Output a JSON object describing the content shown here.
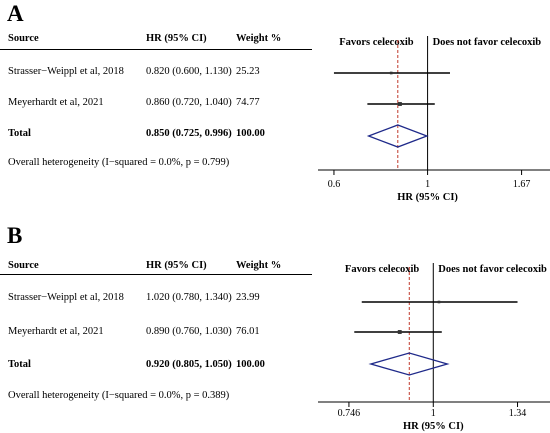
{
  "panels": [
    {
      "label": "A",
      "header": {
        "source": "Source",
        "hr": "HR (95% CI)",
        "weight": "Weight %"
      },
      "studies": [
        {
          "source": "Strasser−Weippl et al, 2018",
          "hr_text": "0.820 (0.600, 1.130)",
          "weight": "25.23"
        },
        {
          "source": "Meyerhardt et al, 2021",
          "hr_text": "0.860 (0.720, 1.040)",
          "weight": "74.77"
        }
      ],
      "total": {
        "label": "Total",
        "hr_text": "0.850 (0.725, 0.996)",
        "weight": "100.00"
      },
      "heterogeneity": "Overall heterogeneity (I−squared = 0.0%, p = 0.799)"
    },
    {
      "label": "B",
      "header": {
        "source": "Source",
        "hr": "HR (95% CI)",
        "weight": "Weight %"
      },
      "studies": [
        {
          "source": "Strasser−Weippl et al, 2018",
          "hr_text": "1.020 (0.780, 1.340)",
          "weight": "23.99"
        },
        {
          "source": "Meyerhardt et al, 2021",
          "hr_text": "0.890 (0.760, 1.030)",
          "weight": "76.01"
        }
      ],
      "total": {
        "label": "Total",
        "hr_text": "0.920 (0.805, 1.050)",
        "weight": "100.00"
      },
      "heterogeneity": "Overall heterogeneity (I−squared = 0.0%, p = 0.389)"
    }
  ],
  "chart_data": [
    {
      "type": "forest",
      "scale": "log",
      "xlim": [
        0.55,
        1.95
      ],
      "xticks": [
        0.6,
        1,
        1.67
      ],
      "tick_labels": [
        "0.6",
        "1",
        "1.67"
      ],
      "xlabel": "HR (95% CI)",
      "favors_left": "Favors celecoxib",
      "favors_right": "Does not favor celecoxib",
      "null_line": 1,
      "studies": [
        {
          "hr": 0.82,
          "lo": 0.6,
          "hi": 1.13,
          "weight": 25.23
        },
        {
          "hr": 0.86,
          "lo": 0.72,
          "hi": 1.04,
          "weight": 74.77
        }
      ],
      "pooled": {
        "hr": 0.85,
        "lo": 0.725,
        "hi": 0.996
      },
      "colors": {
        "pooled_diamond": "#1f2a8a",
        "pooled_line": "#c0392b",
        "lines": "#000000"
      }
    },
    {
      "type": "forest",
      "scale": "log",
      "xlim": [
        0.67,
        1.5
      ],
      "xticks": [
        0.746,
        1,
        1.34
      ],
      "tick_labels": [
        "0.746",
        "1",
        "1.34"
      ],
      "xlabel": "HR (95% CI)",
      "favors_left": "Favors celecoxib",
      "favors_right": "Does not favor celecoxib",
      "null_line": 1,
      "studies": [
        {
          "hr": 1.02,
          "lo": 0.78,
          "hi": 1.34,
          "weight": 23.99
        },
        {
          "hr": 0.89,
          "lo": 0.76,
          "hi": 1.03,
          "weight": 76.01
        }
      ],
      "pooled": {
        "hr": 0.92,
        "lo": 0.805,
        "hi": 1.05
      },
      "colors": {
        "pooled_diamond": "#1f2a8a",
        "pooled_line": "#c0392b",
        "lines": "#000000"
      }
    }
  ]
}
